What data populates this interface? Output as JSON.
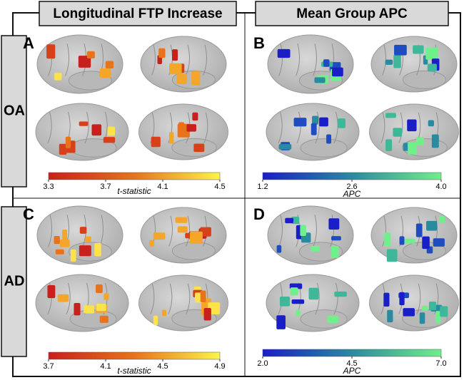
{
  "column_headers": [
    "Longitudinal FTP Increase",
    "Mean Group APC"
  ],
  "row_labels": [
    "OA",
    "AD"
  ],
  "panels": [
    {
      "label": "A",
      "colorbar": {
        "label": "t-statistic",
        "ticks": [
          3.3,
          3.7,
          4.1,
          4.5
        ]
      }
    },
    {
      "label": "B",
      "colorbar": {
        "label": "APC",
        "ticks": [
          1.2,
          2.6,
          {
            "value": 4,
            "label": "4.0"
          }
        ]
      }
    },
    {
      "label": "C",
      "colorbar": {
        "label": "t-statistic",
        "ticks": [
          3.7,
          4.1,
          4.5,
          4.9
        ]
      }
    },
    {
      "label": "D",
      "colorbar": {
        "label": "APC",
        "ticks": [
          {
            "value": 2,
            "label": "2.0"
          },
          4.5,
          {
            "value": 7,
            "label": "7.0"
          }
        ]
      }
    }
  ]
}
